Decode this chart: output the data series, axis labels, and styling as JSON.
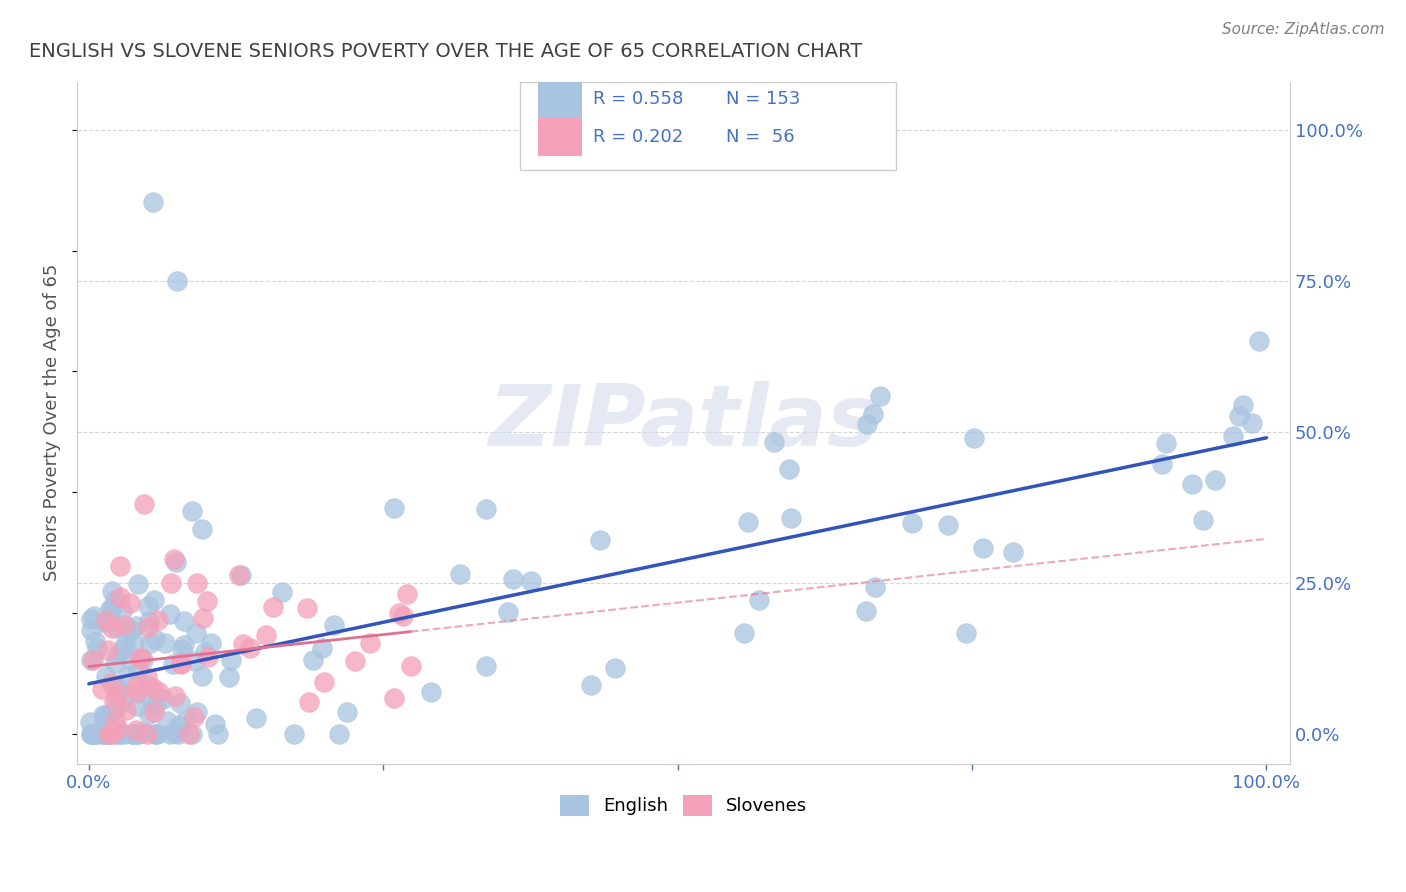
{
  "title": "ENGLISH VS SLOVENE SENIORS POVERTY OVER THE AGE OF 65 CORRELATION CHART",
  "source": "Source: ZipAtlas.com",
  "ylabel": "Seniors Poverty Over the Age of 65",
  "english_R": 0.558,
  "english_N": 153,
  "slovene_R": 0.202,
  "slovene_N": 56,
  "english_color": "#a8c4e0",
  "slovene_color": "#f4a0b8",
  "english_line_color": "#3355bb",
  "slovene_line_color": "#e07090",
  "background_color": "#ffffff",
  "grid_color": "#cccccc",
  "legend_text_color": "#4472c4",
  "title_color": "#404040",
  "tick_color": "#4472c4",
  "axis_label_color": "#555555",
  "source_color": "#808080",
  "watermark_color": "#d0d8ea",
  "watermark_text": "ZIPatlas",
  "legend_label_english": "English",
  "legend_label_slovenes": "Slovenes"
}
